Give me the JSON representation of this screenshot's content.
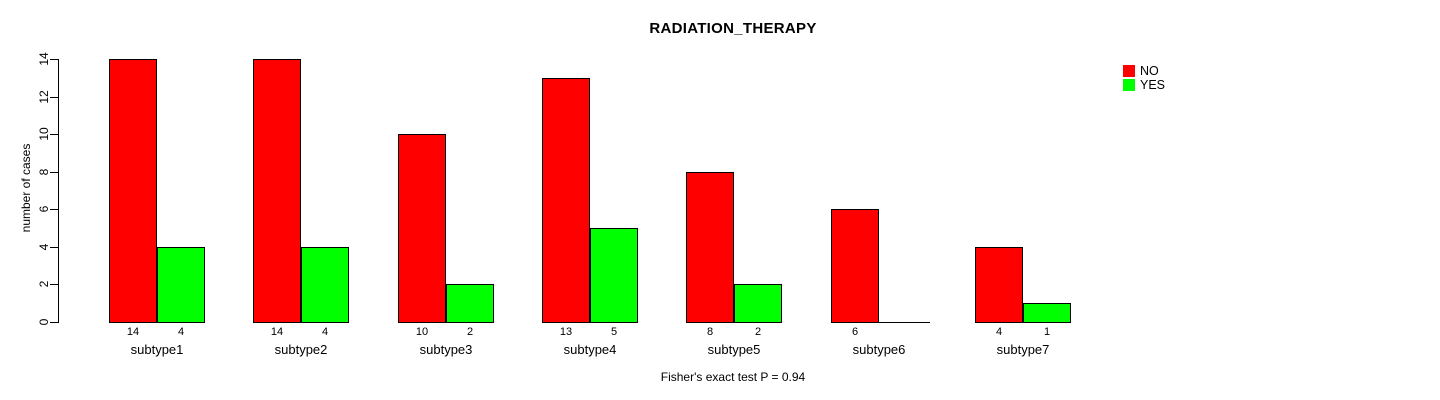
{
  "chart_data": {
    "type": "bar",
    "title": "RADIATION_THERAPY",
    "categories": [
      "subtype1",
      "subtype2",
      "subtype3",
      "subtype4",
      "subtype5",
      "subtype6",
      "subtype7"
    ],
    "series": [
      {
        "name": "NO",
        "color": "#ff0000",
        "values": [
          14,
          14,
          10,
          13,
          8,
          6,
          4
        ]
      },
      {
        "name": "YES",
        "color": "#00ff00",
        "values": [
          4,
          4,
          2,
          5,
          2,
          0,
          1
        ]
      }
    ],
    "xlabel": "",
    "ylabel": "number of cases",
    "ylim": [
      0,
      14
    ],
    "yticks": [
      0,
      2,
      4,
      6,
      8,
      10,
      12,
      14
    ],
    "bar_value_labels": true,
    "hide_zero_value_labels": true,
    "annotation": "Fisher's exact test P = 0.94",
    "legend_position": "topright",
    "grid": false,
    "background": "#ffffff"
  }
}
